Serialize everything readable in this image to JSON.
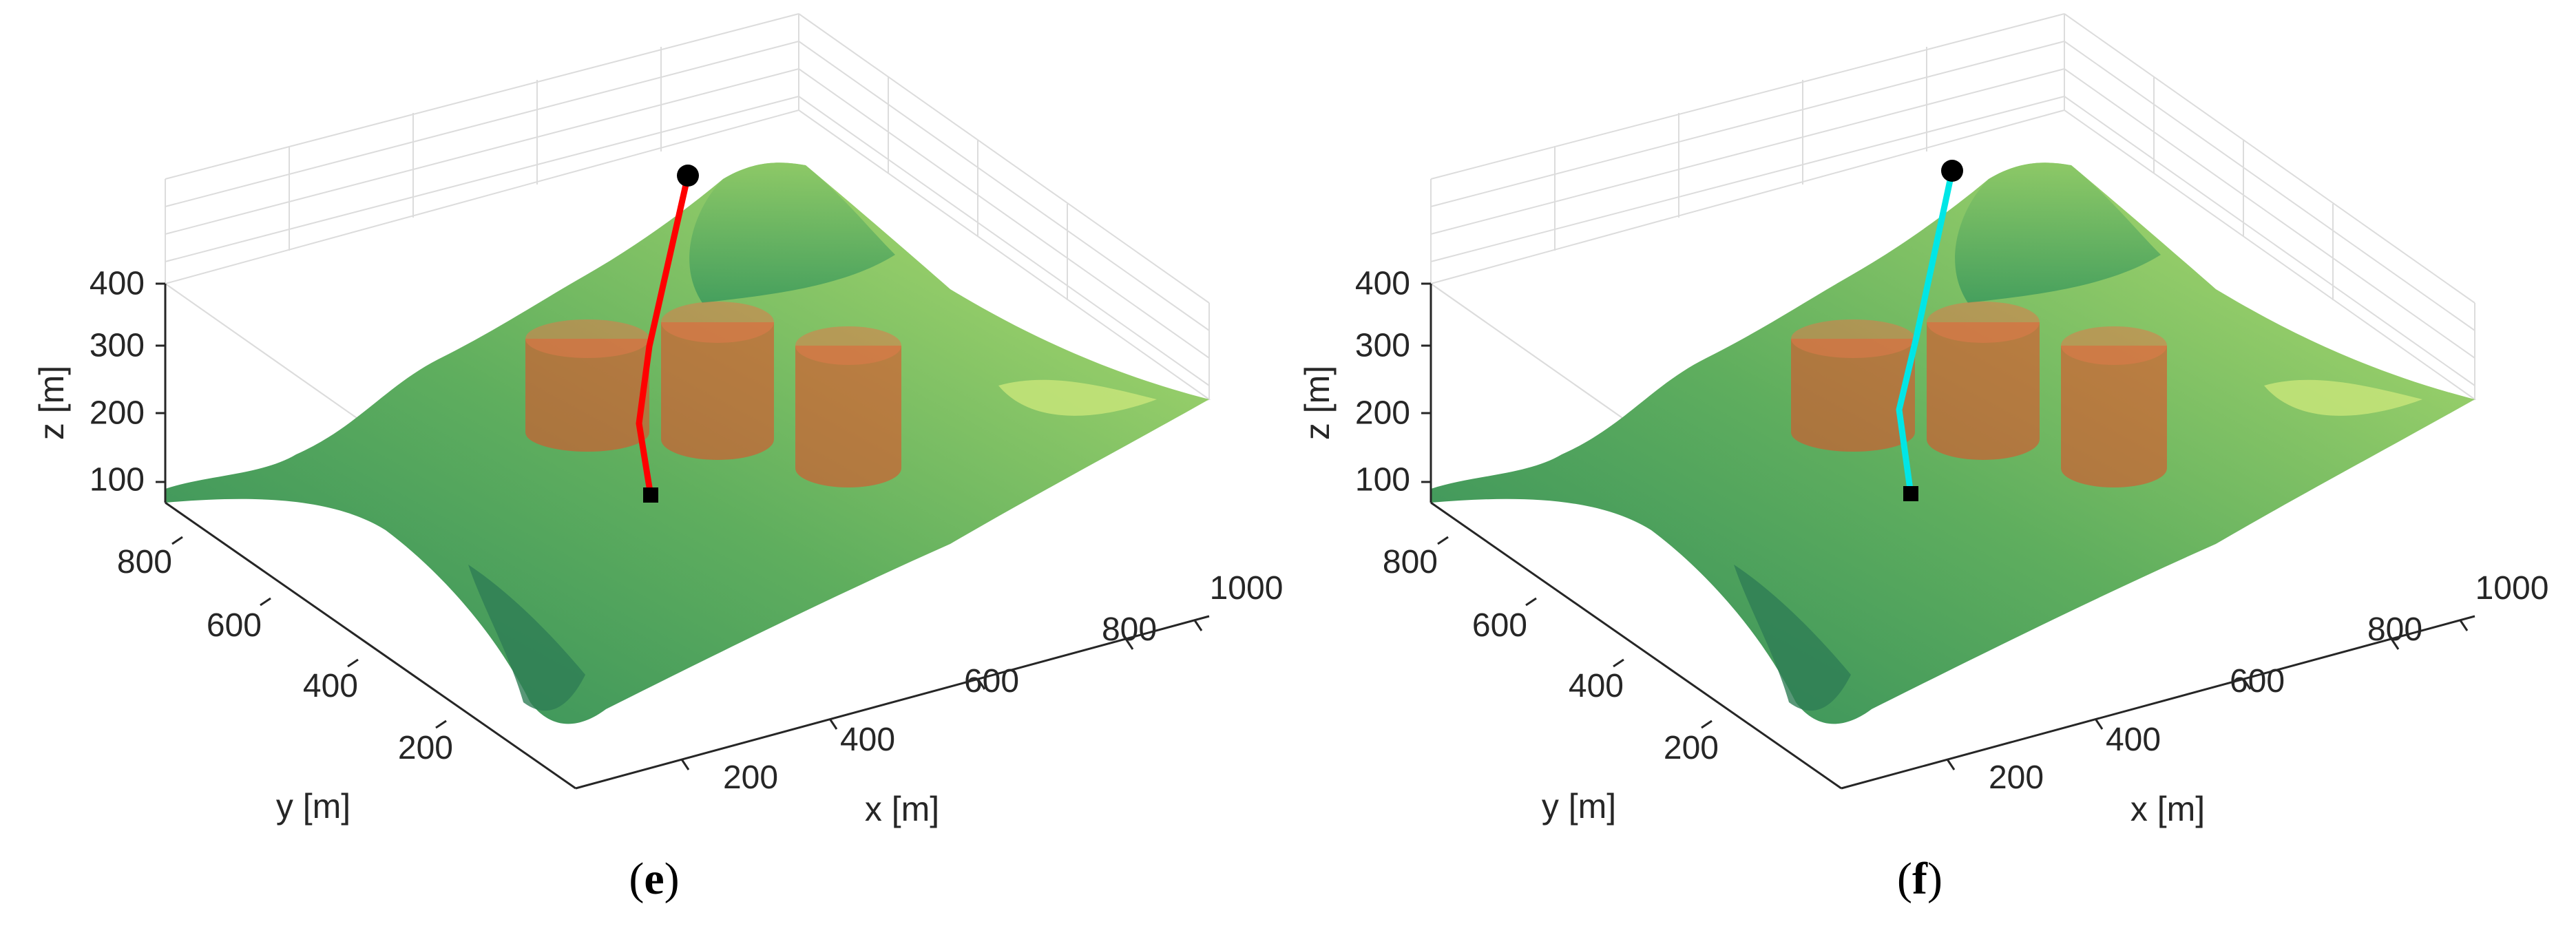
{
  "chart_data": [
    {
      "type": "surface3d",
      "panel_label": "e",
      "xlabel": "x [m]",
      "ylabel": "y [m]",
      "zlabel": "z [m]",
      "xticks": [
        "200",
        "400",
        "600",
        "800",
        "1000"
      ],
      "yticks": [
        "200",
        "400",
        "600",
        "800"
      ],
      "zticks": [
        "100",
        "200",
        "300",
        "400"
      ],
      "xlim": [
        0,
        1050
      ],
      "ylim": [
        0,
        950
      ],
      "zlim": [
        50,
        400
      ],
      "path_color": "#ff0000",
      "path": [
        [
          450,
          520,
          380
        ],
        [
          420,
          500,
          230
        ],
        [
          405,
          490,
          150
        ],
        [
          398,
          485,
          70
        ]
      ],
      "start": [
        450,
        520,
        380
      ],
      "goal": [
        398,
        485,
        70
      ],
      "obstacles": [
        {
          "cx": 260,
          "cy": 460,
          "radius": 110,
          "z_bottom": 80,
          "z_top": 260
        },
        {
          "cx": 470,
          "cy": 430,
          "radius": 110,
          "z_bottom": 80,
          "z_top": 260
        },
        {
          "cx": 640,
          "cy": 380,
          "radius": 100,
          "z_bottom": 80,
          "z_top": 240
        }
      ],
      "colors": {
        "path": "#ff0000",
        "obstacle": "#e0502a",
        "terrain_high": "#9ad468",
        "terrain_low": "#2e8a5a"
      }
    },
    {
      "type": "surface3d",
      "panel_label": "f",
      "xlabel": "x [m]",
      "ylabel": "y [m]",
      "zlabel": "z [m]",
      "xticks": [
        "200",
        "400",
        "600",
        "800",
        "1000"
      ],
      "yticks": [
        "200",
        "400",
        "600",
        "800"
      ],
      "zticks": [
        "100",
        "200",
        "300",
        "400"
      ],
      "xlim": [
        0,
        1050
      ],
      "ylim": [
        0,
        950
      ],
      "zlim": [
        50,
        400
      ],
      "path_color": "#00e6e6",
      "path": [
        [
          450,
          520,
          380
        ],
        [
          415,
          500,
          225
        ],
        [
          405,
          490,
          150
        ],
        [
          398,
          485,
          70
        ]
      ],
      "start": [
        450,
        520,
        380
      ],
      "goal": [
        398,
        485,
        70
      ],
      "obstacles": [
        {
          "cx": 260,
          "cy": 460,
          "radius": 110,
          "z_bottom": 80,
          "z_top": 260
        },
        {
          "cx": 470,
          "cy": 430,
          "radius": 110,
          "z_bottom": 80,
          "z_top": 260
        },
        {
          "cx": 640,
          "cy": 380,
          "radius": 100,
          "z_bottom": 80,
          "z_top": 240
        }
      ],
      "colors": {
        "path": "#00e6e6",
        "obstacle": "#e0502a",
        "terrain_high": "#9ad468",
        "terrain_low": "#2e8a5a"
      }
    }
  ],
  "captions": [
    {
      "open": "(",
      "letter": "e",
      "close": ")"
    },
    {
      "open": "(",
      "letter": "f",
      "close": ")"
    }
  ]
}
